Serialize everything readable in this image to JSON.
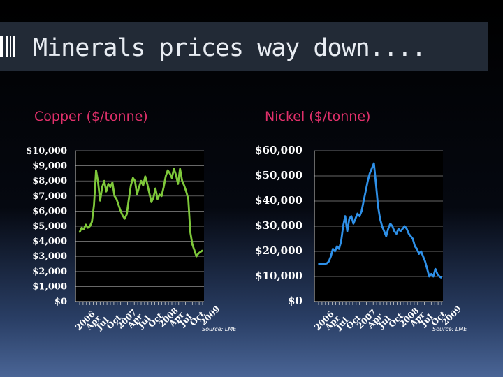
{
  "slide": {
    "title": "Minerals prices way down....",
    "accent_color": "#e0306a",
    "title_bar_color": "#222a36"
  },
  "chart_data": [
    {
      "type": "line",
      "heading": "Copper ($/tonne)",
      "title": "",
      "ylim": [
        0,
        10000
      ],
      "y_ticks": [
        0,
        1000,
        2000,
        3000,
        4000,
        5000,
        6000,
        7000,
        8000,
        9000,
        10000
      ],
      "y_tick_labels": [
        "$0",
        "$1,000",
        "$2,000",
        "$3,000",
        "$4,000",
        "$5,000",
        "$6,000",
        "$7,000",
        "$8,000",
        "$9,000",
        "$10,000"
      ],
      "x_tick_labels": [
        "2006",
        "Apr",
        "Jul",
        "Oct",
        "2007",
        "Apr",
        "Jul",
        "Oct",
        "2008",
        "Apr",
        "Jul",
        "Oct",
        "2009"
      ],
      "source": "Source: LME",
      "grid": true,
      "series": [
        {
          "color": "#7ec83a",
          "x": [
            0,
            0.2,
            0.4,
            0.6,
            0.8,
            1.0,
            1.2,
            1.4,
            1.6,
            1.8,
            2.0,
            2.2,
            2.4,
            2.6,
            2.8,
            3.0,
            3.2,
            3.4,
            3.6,
            3.8,
            4.0,
            4.2,
            4.4,
            4.6,
            4.8,
            5.0,
            5.2,
            5.4,
            5.6,
            5.8,
            6.0,
            6.2,
            6.4,
            6.6,
            6.8,
            7.0,
            7.2,
            7.4,
            7.6,
            7.8,
            8.0,
            8.2,
            8.4,
            8.6,
            8.8,
            9.0,
            9.2,
            9.4,
            9.6,
            9.8,
            10.0,
            10.2,
            10.4,
            10.6,
            10.8,
            11.0,
            11.2,
            11.4,
            11.6,
            11.8,
            12.0
          ],
          "values": [
            4600,
            4900,
            4800,
            5100,
            4900,
            5000,
            5300,
            6400,
            8700,
            7900,
            6700,
            7600,
            8000,
            7300,
            7800,
            7600,
            7900,
            7000,
            6800,
            6400,
            6000,
            5700,
            5500,
            5800,
            6800,
            7700,
            8200,
            8000,
            7100,
            7600,
            8000,
            7700,
            8300,
            7800,
            7200,
            6600,
            6900,
            7500,
            6800,
            7100,
            7000,
            7600,
            8300,
            8700,
            8500,
            8200,
            8800,
            8400,
            7800,
            8800,
            8000,
            7700,
            7300,
            6800,
            4600,
            3800,
            3400,
            3000,
            3200,
            3300,
            3400
          ]
        }
      ]
    },
    {
      "type": "line",
      "heading": "Nickel ($/tonne)",
      "title": "",
      "ylim": [
        0,
        60000
      ],
      "y_ticks": [
        0,
        10000,
        20000,
        30000,
        40000,
        50000,
        60000
      ],
      "y_tick_labels": [
        "$0",
        "$10,000",
        "$20,000",
        "$30,000",
        "$40,000",
        "$50,000",
        "$60,000"
      ],
      "x_tick_labels": [
        "2006",
        "Apr",
        "Jul",
        "Oct",
        "2007",
        "Apr",
        "Jul",
        "Oct",
        "2008",
        "Apr",
        "Jul",
        "Oct",
        "2009"
      ],
      "source": "Source: LME",
      "grid": true,
      "series": [
        {
          "color": "#2e90e8",
          "x": [
            0,
            0.2,
            0.4,
            0.6,
            0.8,
            1.0,
            1.2,
            1.4,
            1.6,
            1.8,
            2.0,
            2.2,
            2.4,
            2.6,
            2.8,
            3.0,
            3.2,
            3.4,
            3.6,
            3.8,
            4.0,
            4.2,
            4.4,
            4.6,
            4.8,
            5.0,
            5.2,
            5.4,
            5.6,
            5.8,
            6.0,
            6.2,
            6.4,
            6.6,
            6.8,
            7.0,
            7.2,
            7.4,
            7.6,
            7.8,
            8.0,
            8.2,
            8.4,
            8.6,
            8.8,
            9.0,
            9.2,
            9.4,
            9.6,
            9.8,
            10.0,
            10.2,
            10.4,
            10.6,
            10.8,
            11.0,
            11.2,
            11.4,
            11.6,
            11.8,
            12.0
          ],
          "values": [
            15000,
            15000,
            15000,
            15000,
            15200,
            16000,
            18000,
            21000,
            20000,
            22000,
            21000,
            24000,
            30000,
            34000,
            28000,
            33000,
            34000,
            31000,
            33000,
            35000,
            34000,
            36000,
            40000,
            44000,
            48000,
            51000,
            53000,
            55000,
            47000,
            38000,
            33000,
            30000,
            28000,
            26000,
            29000,
            31000,
            30000,
            28000,
            27000,
            29000,
            28000,
            29000,
            30000,
            29000,
            27000,
            26000,
            25000,
            22000,
            21000,
            19000,
            20000,
            18000,
            16000,
            13000,
            10000,
            11000,
            10000,
            13000,
            11000,
            10000,
            9500
          ]
        }
      ]
    }
  ]
}
